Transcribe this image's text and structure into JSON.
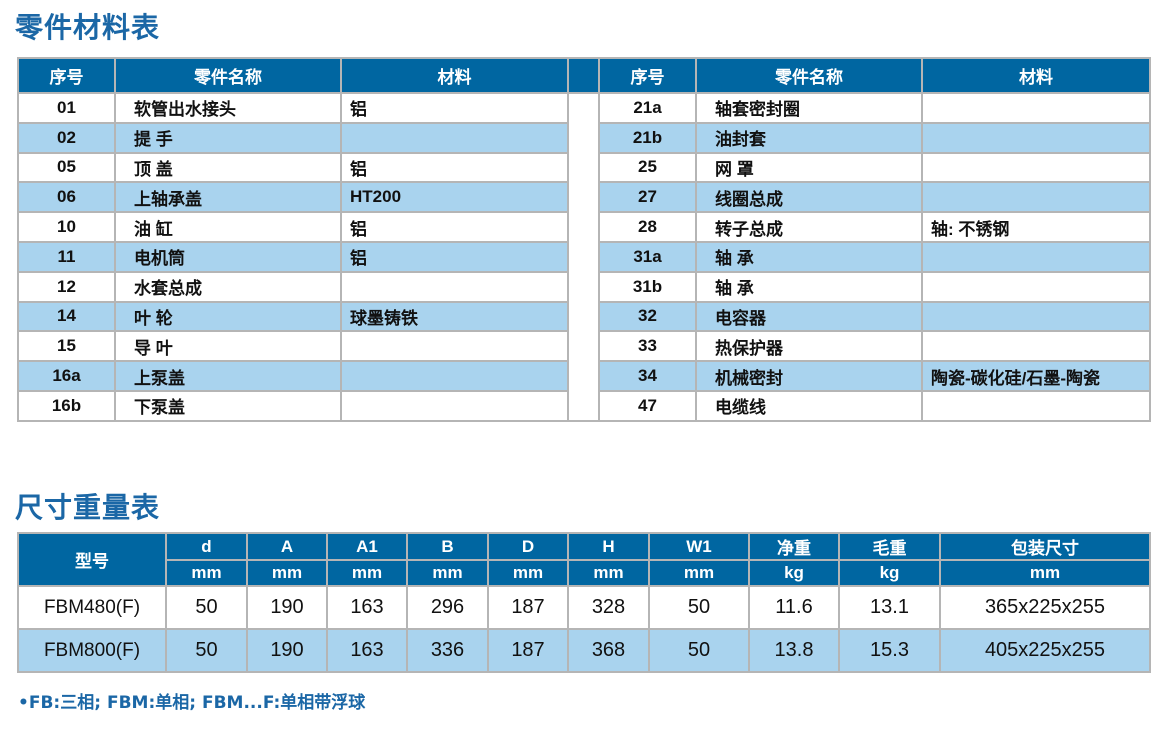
{
  "parts_table": {
    "title": "零件材料表",
    "headers": [
      "序号",
      "零件名称",
      "材料"
    ],
    "left_rows": [
      {
        "no": "01",
        "name": "软管出水接头",
        "material": "铝"
      },
      {
        "no": "02",
        "name": "提  手",
        "material": ""
      },
      {
        "no": "05",
        "name": "顶  盖",
        "material": "铝"
      },
      {
        "no": "06",
        "name": "上轴承盖",
        "material": "HT200"
      },
      {
        "no": "10",
        "name": "油  缸",
        "material": "铝"
      },
      {
        "no": "11",
        "name": "电机筒",
        "material": "铝"
      },
      {
        "no": "12",
        "name": "水套总成",
        "material": ""
      },
      {
        "no": "14",
        "name": "叶  轮",
        "material": "球墨铸铁"
      },
      {
        "no": "15",
        "name": "导  叶",
        "material": ""
      },
      {
        "no": "16a",
        "name": "上泵盖",
        "material": ""
      },
      {
        "no": "16b",
        "name": "下泵盖",
        "material": ""
      }
    ],
    "right_rows": [
      {
        "no": "21a",
        "name": "轴套密封圈",
        "material": ""
      },
      {
        "no": "21b",
        "name": "油封套",
        "material": ""
      },
      {
        "no": "25",
        "name": "网  罩",
        "material": ""
      },
      {
        "no": "27",
        "name": "线圈总成",
        "material": ""
      },
      {
        "no": "28",
        "name": "转子总成",
        "material": "轴: 不锈钢"
      },
      {
        "no": "31a",
        "name": "轴  承",
        "material": ""
      },
      {
        "no": "31b",
        "name": "轴  承",
        "material": ""
      },
      {
        "no": "32",
        "name": "电容器",
        "material": ""
      },
      {
        "no": "33",
        "name": "热保护器",
        "material": ""
      },
      {
        "no": "34",
        "name": "机械密封",
        "material": "陶瓷-碳化硅/石墨-陶瓷"
      },
      {
        "no": "47",
        "name": "电缆线",
        "material": ""
      }
    ]
  },
  "dims_table": {
    "title": "尺寸重量表",
    "model_header": "型号",
    "columns": [
      {
        "name": "d",
        "unit": "mm"
      },
      {
        "name": "A",
        "unit": "mm"
      },
      {
        "name": "A1",
        "unit": "mm"
      },
      {
        "name": "B",
        "unit": "mm"
      },
      {
        "name": "D",
        "unit": "mm"
      },
      {
        "name": "H",
        "unit": "mm"
      },
      {
        "name": "W1",
        "unit": "mm"
      },
      {
        "name": "净重",
        "unit": "kg"
      },
      {
        "name": "毛重",
        "unit": "kg"
      },
      {
        "name": "包装尺寸",
        "unit": "mm"
      }
    ],
    "rows": [
      {
        "model": "FBM480(F)",
        "values": [
          "50",
          "190",
          "163",
          "296",
          "187",
          "328",
          "50",
          "11.6",
          "13.1",
          "365x225x255"
        ]
      },
      {
        "model": "FBM800(F)",
        "values": [
          "50",
          "190",
          "163",
          "336",
          "187",
          "368",
          "50",
          "13.8",
          "15.3",
          "405x225x255"
        ]
      }
    ]
  },
  "note": "•FB:三相; FBM:单相; FBM...F:单相带浮球",
  "colors": {
    "header": "#0066a1",
    "alt_row": "#a9d3ee",
    "title": "#1b67a6"
  }
}
